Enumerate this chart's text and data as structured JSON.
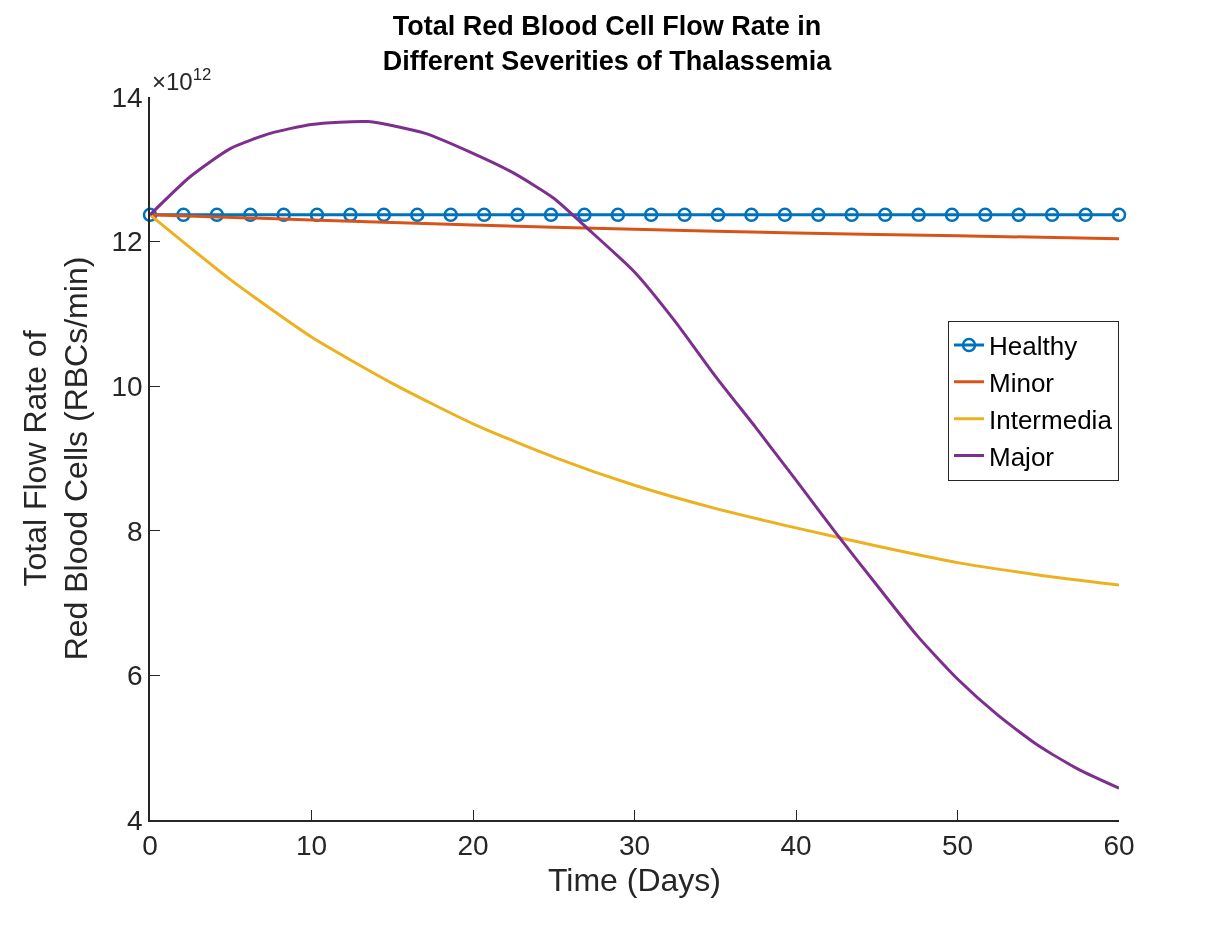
{
  "chart_data": {
    "type": "line",
    "title": "Total Red Blood Cell Flow Rate in\nDifferent Severities of Thalassemia",
    "xlabel": "Time (Days)",
    "ylabel": "Total Flow Rate of\nRed Blood Cells (RBCs/min)",
    "annotations": [
      "×10$^{12}$"
    ],
    "xlim": [
      0,
      60
    ],
    "xticks": [
      0,
      10,
      20,
      30,
      40,
      50,
      60
    ],
    "ylim": [
      4,
      14
    ],
    "yticks": [
      4,
      6,
      8,
      10,
      12,
      14
    ],
    "legend": "right",
    "series": [
      {
        "name": "Healthy",
        "color": "#0072bd",
        "marker": "circle",
        "x": [
          0,
          2.07,
          4.14,
          6.21,
          8.28,
          10.34,
          12.41,
          14.48,
          16.55,
          18.62,
          20.69,
          22.76,
          24.83,
          26.9,
          28.97,
          31.03,
          33.1,
          35.17,
          37.24,
          39.31,
          41.38,
          43.45,
          45.52,
          47.59,
          49.66,
          51.72,
          53.79,
          55.86,
          57.93,
          60
        ],
        "values": [
          12.37,
          12.37,
          12.37,
          12.37,
          12.37,
          12.37,
          12.37,
          12.37,
          12.37,
          12.37,
          12.37,
          12.37,
          12.37,
          12.37,
          12.37,
          12.37,
          12.37,
          12.37,
          12.37,
          12.37,
          12.37,
          12.37,
          12.37,
          12.37,
          12.37,
          12.37,
          12.37,
          12.37,
          12.37,
          12.37
        ]
      },
      {
        "name": "Minor",
        "color": "#d95319",
        "marker": "none",
        "x": [
          0,
          10,
          20,
          30,
          40,
          50,
          60
        ],
        "values": [
          12.37,
          12.3,
          12.23,
          12.17,
          12.12,
          12.08,
          12.04
        ]
      },
      {
        "name": "Intermedia",
        "color": "#edb120",
        "marker": "none",
        "x": [
          0,
          5,
          10,
          15,
          20,
          25,
          30,
          35,
          40,
          45,
          50,
          55,
          60
        ],
        "values": [
          12.37,
          11.47,
          10.68,
          10.04,
          9.48,
          9.02,
          8.63,
          8.31,
          8.04,
          7.79,
          7.56,
          7.39,
          7.25
        ]
      },
      {
        "name": "Major",
        "color": "#7e2f8e",
        "marker": "none",
        "x": [
          0,
          2.5,
          5,
          7.5,
          10,
          13.5,
          17,
          20,
          22.5,
          25,
          27,
          30,
          32.5,
          35,
          37.5,
          40,
          42.5,
          45,
          47.5,
          50,
          52.5,
          55,
          57.5,
          60
        ],
        "values": [
          12.37,
          12.9,
          13.29,
          13.5,
          13.62,
          13.66,
          13.5,
          13.22,
          12.95,
          12.6,
          12.2,
          11.58,
          10.9,
          10.14,
          9.43,
          8.7,
          7.96,
          7.25,
          6.55,
          5.95,
          5.45,
          5.03,
          4.7,
          4.44
        ]
      }
    ]
  }
}
